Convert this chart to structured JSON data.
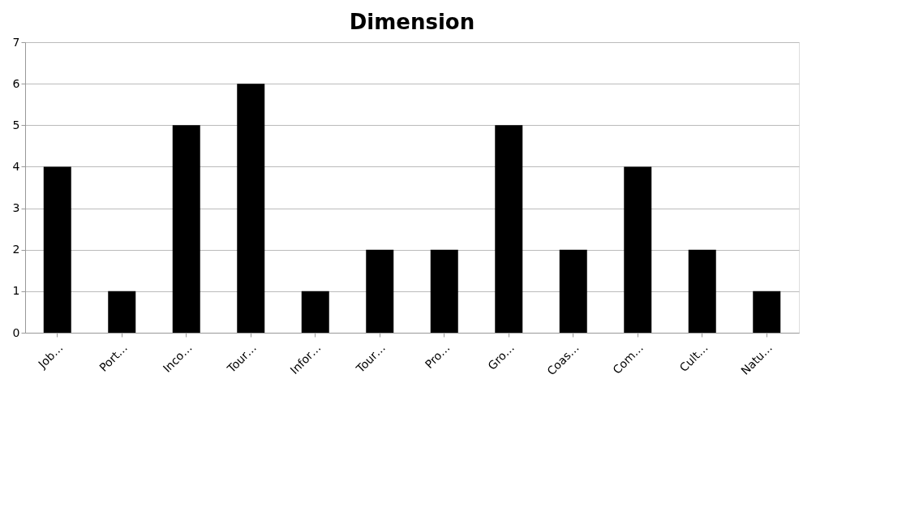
{
  "chart_data": {
    "type": "bar",
    "title": "Dimension",
    "categories": [
      "Job…",
      "Port…",
      "Inco…",
      "Tour…",
      "Infor…",
      "Tour…",
      "Pro…",
      "Gro…",
      "Coas…",
      "Com…",
      "Cult…",
      "Natu…"
    ],
    "values": [
      4,
      1,
      5,
      6,
      1,
      2,
      2,
      5,
      2,
      4,
      2,
      1
    ],
    "color": "#000000",
    "ylim": [
      0,
      7
    ],
    "yticks": [
      0,
      1,
      2,
      3,
      4,
      5,
      6,
      7
    ],
    "grid": "y"
  }
}
